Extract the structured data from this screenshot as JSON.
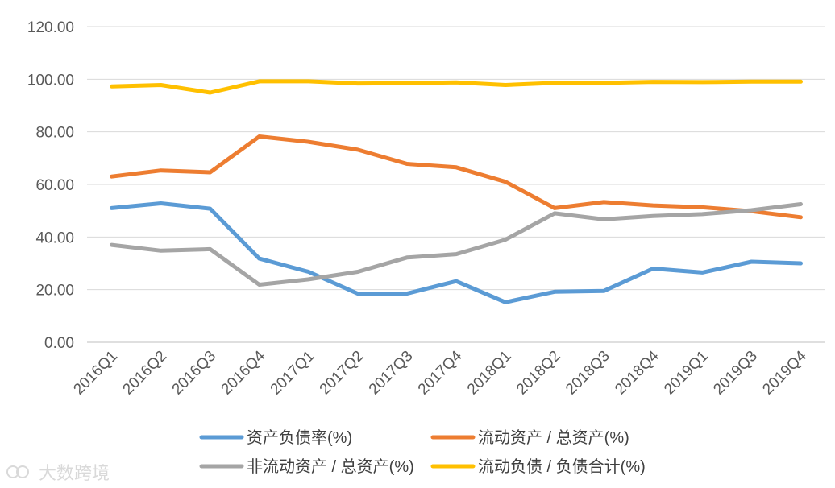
{
  "chart_data": {
    "type": "line",
    "categories": [
      "2016Q1",
      "2016Q2",
      "2016Q3",
      "2016Q4",
      "2017Q1",
      "2017Q2",
      "2017Q3",
      "2017Q4",
      "2018Q1",
      "2018Q2",
      "2018Q3",
      "2018Q4",
      "2019Q1",
      "2019Q3",
      "2019Q4"
    ],
    "ylim": [
      0,
      120
    ],
    "yticks": [
      "0.00",
      "20.00",
      "40.00",
      "60.00",
      "80.00",
      "100.00",
      "120.00"
    ],
    "grid": true,
    "legend_position": "bottom",
    "series": [
      {
        "name": "资产负债率(%)",
        "color": "#5B9BD5",
        "values": [
          51.0,
          52.8,
          50.8,
          31.8,
          26.8,
          18.5,
          18.5,
          23.2,
          15.2,
          19.2,
          19.5,
          28.0,
          26.5,
          30.6,
          30.0
        ]
      },
      {
        "name": "流动资产 / 总资产(%)",
        "color": "#ED7D31",
        "values": [
          63.0,
          65.3,
          64.6,
          78.2,
          76.2,
          73.2,
          67.8,
          66.5,
          61.0,
          51.0,
          53.3,
          52.0,
          51.3,
          49.8,
          47.5
        ]
      },
      {
        "name": "非流动资产 / 总资产(%)",
        "color": "#A5A5A5",
        "values": [
          37.0,
          34.8,
          35.4,
          21.9,
          23.9,
          26.8,
          32.2,
          33.5,
          39.0,
          49.0,
          46.7,
          48.0,
          48.7,
          50.2,
          52.5
        ]
      },
      {
        "name": "流动负债 / 负债合计(%)",
        "color": "#FFC000",
        "values": [
          97.3,
          97.8,
          94.9,
          99.2,
          99.2,
          98.4,
          98.5,
          98.8,
          97.8,
          98.6,
          98.6,
          99.0,
          98.9,
          99.1,
          99.1
        ]
      }
    ]
  },
  "watermark": {
    "text": "大数跨境"
  }
}
